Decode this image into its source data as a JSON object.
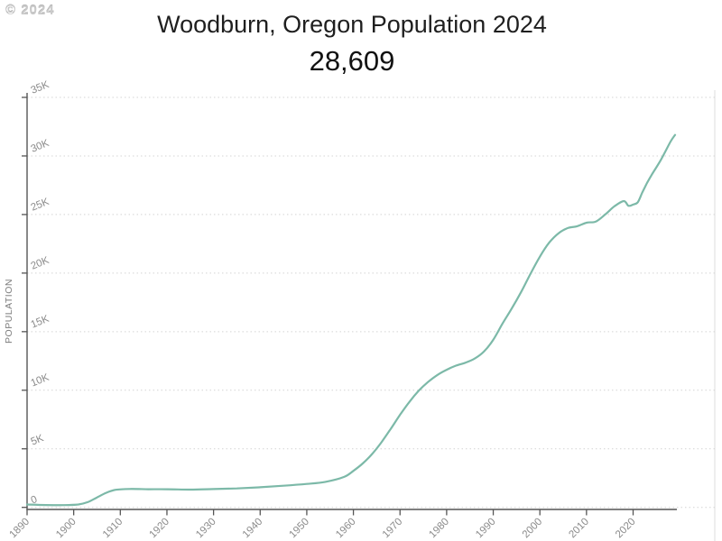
{
  "watermark": "© 2024",
  "header": {
    "title": "Woodburn, Oregon Population 2024",
    "subtitle": "28,609"
  },
  "chart_data": {
    "type": "line",
    "title": "Woodburn, Oregon Population 2024",
    "subtitle": "28,609",
    "ylabel": "POPULATION",
    "xlabel": "",
    "xlim": [
      1890,
      2029
    ],
    "ylim": [
      0,
      35000
    ],
    "grid": "horizontal-dotted",
    "legend": "none",
    "y_ticks": [
      {
        "value": 0,
        "label": "0"
      },
      {
        "value": 5000,
        "label": "5K"
      },
      {
        "value": 10000,
        "label": "10K"
      },
      {
        "value": 15000,
        "label": "15K"
      },
      {
        "value": 20000,
        "label": "20K"
      },
      {
        "value": 25000,
        "label": "25K"
      },
      {
        "value": 30000,
        "label": "30K"
      },
      {
        "value": 35000,
        "label": "35K"
      }
    ],
    "x_ticks": [
      1890,
      1900,
      1910,
      1920,
      1930,
      1940,
      1950,
      1960,
      1970,
      1980,
      1990,
      2000,
      2010,
      2020
    ],
    "series": [
      {
        "name": "Population",
        "color": "#7cb9a8",
        "x": [
          1890,
          1894,
          1898,
          1901,
          1903,
          1905,
          1907,
          1909,
          1912,
          1916,
          1920,
          1925,
          1930,
          1935,
          1940,
          1945,
          1950,
          1954,
          1958,
          1960,
          1962,
          1964,
          1966,
          1968,
          1970,
          1972,
          1974,
          1976,
          1978,
          1980,
          1982,
          1984,
          1986,
          1988,
          1990,
          1992,
          1994,
          1996,
          1998,
          2000,
          2002,
          2004,
          2006,
          2008,
          2010,
          2012,
          2014,
          2016,
          2018,
          2019,
          2020,
          2021,
          2022,
          2023,
          2024,
          2026,
          2028,
          2029
        ],
        "values": [
          250,
          200,
          190,
          250,
          450,
          850,
          1250,
          1500,
          1570,
          1550,
          1550,
          1520,
          1560,
          1620,
          1720,
          1850,
          2000,
          2180,
          2600,
          3120,
          3750,
          4550,
          5550,
          6700,
          7900,
          9000,
          9950,
          10700,
          11300,
          11750,
          12100,
          12350,
          12700,
          13300,
          14300,
          15700,
          17000,
          18400,
          19950,
          21400,
          22600,
          23400,
          23850,
          24000,
          24300,
          24400,
          25000,
          25700,
          26150,
          25750,
          25850,
          26050,
          26900,
          27700,
          28400,
          29700,
          31200,
          31800
        ]
      }
    ]
  },
  "colors": {
    "line": "#7cb9a8",
    "axis": "#555555",
    "grid": "#d4d4d4",
    "tick_label": "#8a8a8a",
    "axis_label": "#7d7d7d",
    "right_border": "#dddddd",
    "title_text": "#1f1f1f"
  },
  "geometry_note": "plot area left 30, right 748, y0 563, y35k 108"
}
